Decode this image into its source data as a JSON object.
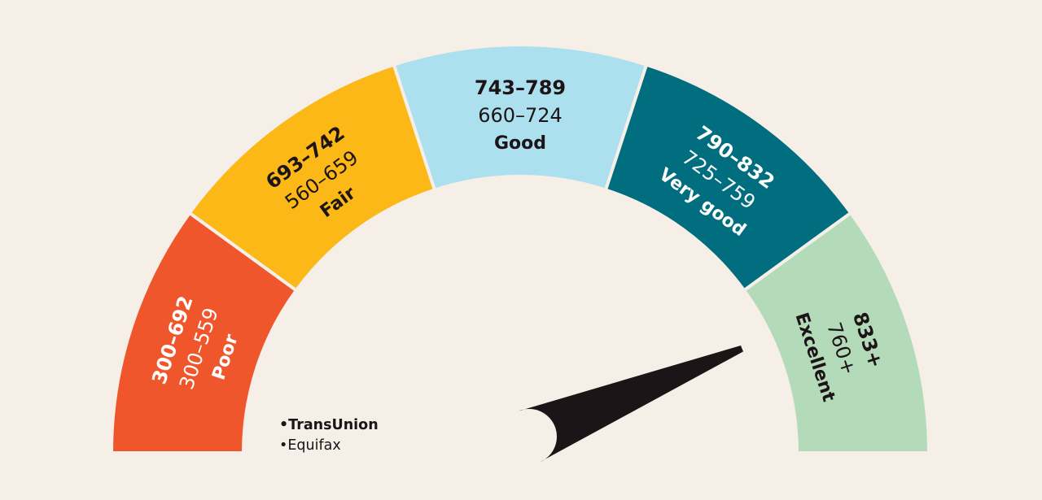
{
  "gauge": {
    "needle_score": 825,
    "segments": [
      {
        "label": "Poor",
        "transunion": "300–692",
        "equifax": "300–559",
        "color": "#f0562b",
        "text_color": "#ffffff"
      },
      {
        "label": "Fair",
        "transunion": "693–742",
        "equifax": "560–659",
        "color": "#fbb817",
        "text_color": "#1c1417"
      },
      {
        "label": "Good",
        "transunion": "743–789",
        "equifax": "660–724",
        "color": "#ade0ef",
        "text_color": "#1c1417"
      },
      {
        "label": "Very good",
        "transunion": "790–832",
        "equifax": "725–759",
        "color": "#006e7f",
        "text_color": "#ffffff"
      },
      {
        "label": "Excellent",
        "transunion": "833+",
        "equifax": "760+",
        "color": "#b3dab9",
        "text_color": "#1c1417"
      }
    ]
  },
  "legend": {
    "primary": "•TransUnion",
    "secondary": "•Equifax"
  },
  "colors": {
    "background": "#f5efe8",
    "needle": "#1c1417",
    "text_dark": "#1c1417"
  }
}
